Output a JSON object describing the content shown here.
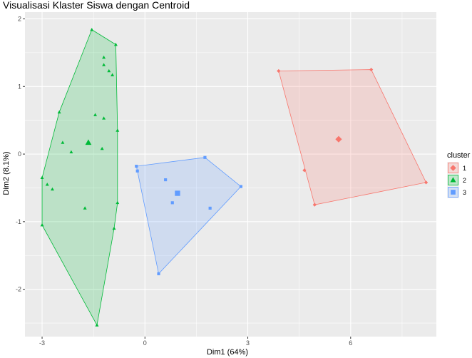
{
  "chart_data": {
    "type": "scatter",
    "title": "Visualisasi Klaster Siswa dengan Centroid",
    "xlabel": "Dim1 (64%)",
    "ylabel": "Dim2 (8.1%)",
    "xlim": [
      -3.5,
      8.5
    ],
    "ylim": [
      -2.7,
      2.1
    ],
    "x_ticks": [
      -3,
      0,
      3,
      6
    ],
    "y_ticks": [
      -2,
      -1,
      0,
      1,
      2
    ],
    "grid": true,
    "legend_title": "cluster",
    "legend_position": "right",
    "series": [
      {
        "name": "1",
        "color": "#F8766D",
        "shape": "diamond",
        "points": [
          [
            3.9,
            1.23
          ],
          [
            6.6,
            1.25
          ],
          [
            8.2,
            -0.42
          ],
          [
            4.95,
            -0.75
          ],
          [
            4.65,
            -0.24
          ]
        ],
        "hull": [
          [
            3.9,
            1.23
          ],
          [
            6.6,
            1.25
          ],
          [
            8.2,
            -0.42
          ],
          [
            4.95,
            -0.75
          ]
        ],
        "centroid": [
          5.65,
          0.22
        ]
      },
      {
        "name": "2",
        "color": "#00BA38",
        "shape": "triangle",
        "points": [
          [
            -1.55,
            1.84
          ],
          [
            -0.85,
            1.62
          ],
          [
            -1.2,
            1.43
          ],
          [
            -1.2,
            1.32
          ],
          [
            -1.05,
            1.23
          ],
          [
            -0.95,
            1.17
          ],
          [
            -2.5,
            0.62
          ],
          [
            -1.45,
            0.58
          ],
          [
            -1.2,
            0.53
          ],
          [
            -0.8,
            0.35
          ],
          [
            -2.4,
            0.17
          ],
          [
            -2.15,
            0.03
          ],
          [
            -1.25,
            0.08
          ],
          [
            -3.0,
            -0.35
          ],
          [
            -2.85,
            -0.45
          ],
          [
            -2.7,
            -0.52
          ],
          [
            -0.8,
            -0.72
          ],
          [
            -1.75,
            -0.8
          ],
          [
            -3.0,
            -1.05
          ],
          [
            -0.9,
            -1.1
          ],
          [
            -1.4,
            -2.53
          ]
        ],
        "hull": [
          [
            -1.55,
            1.84
          ],
          [
            -0.85,
            1.62
          ],
          [
            -0.8,
            0.35
          ],
          [
            -0.8,
            -0.72
          ],
          [
            -0.9,
            -1.1
          ],
          [
            -1.4,
            -2.53
          ],
          [
            -3.0,
            -1.05
          ],
          [
            -3.0,
            -0.35
          ],
          [
            -2.5,
            0.62
          ]
        ],
        "centroid": [
          -1.65,
          0.17
        ]
      },
      {
        "name": "3",
        "color": "#619CFF",
        "shape": "square",
        "points": [
          [
            -0.25,
            -0.18
          ],
          [
            -0.22,
            -0.25
          ],
          [
            1.75,
            -0.05
          ],
          [
            2.8,
            -0.48
          ],
          [
            0.6,
            -0.38
          ],
          [
            0.8,
            -0.72
          ],
          [
            1.9,
            -0.8
          ],
          [
            0.4,
            -1.77
          ]
        ],
        "hull": [
          [
            -0.25,
            -0.18
          ],
          [
            1.75,
            -0.05
          ],
          [
            2.8,
            -0.48
          ],
          [
            0.4,
            -1.77
          ],
          [
            -0.22,
            -0.25
          ]
        ],
        "centroid": [
          0.95,
          -0.58
        ]
      }
    ]
  }
}
